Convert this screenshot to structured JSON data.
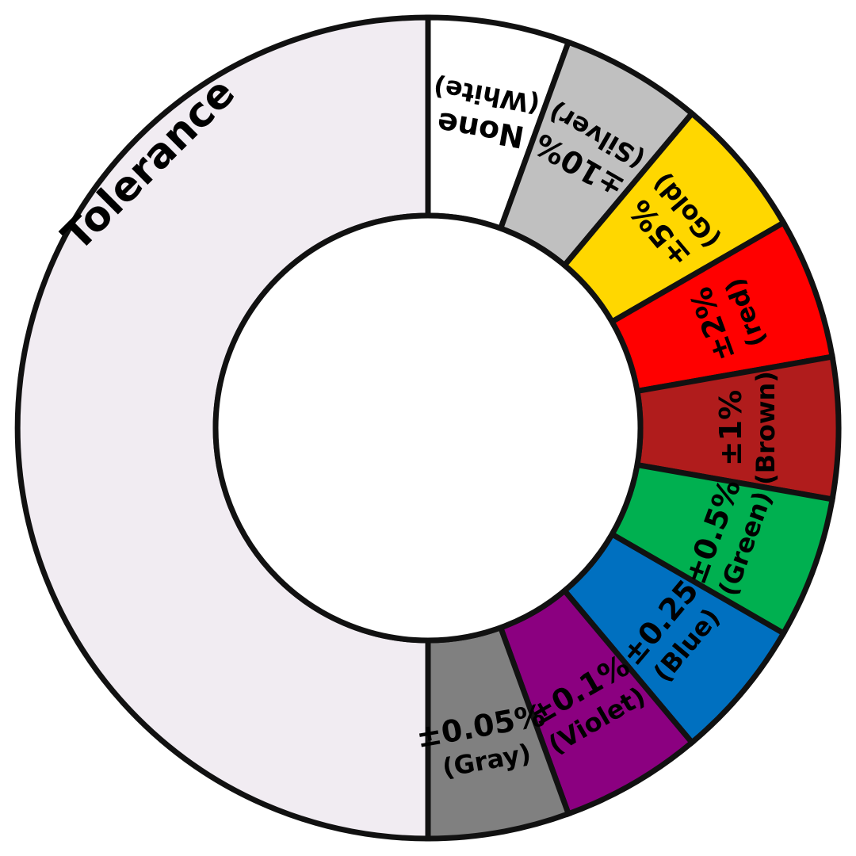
{
  "wheel": {
    "title": "Tolerance",
    "title_bg_color": "#F1ECF2",
    "segments": [
      {
        "line1": "None",
        "line2": "(White)",
        "color": "#FFFFFF"
      },
      {
        "line1": "±10%",
        "line2": "(Silver)",
        "color": "#C0C0C0"
      },
      {
        "line1": "±5%",
        "line2": "(Gold)",
        "color": "#FFD700"
      },
      {
        "line1": "±2%",
        "line2": "(red)",
        "color": "#FF0000"
      },
      {
        "line1": "±1%",
        "line2": "(Brown)",
        "color": "#B01C1C"
      },
      {
        "line1": "±0.5%",
        "line2": "(Green)",
        "color": "#00B050"
      },
      {
        "line1": "±0.25",
        "line2": "(Blue)",
        "color": "#0070C0"
      },
      {
        "line1": "±0.1%",
        "line2": "(Violet)",
        "color": "#8B0080"
      },
      {
        "line1": "±0.05%",
        "line2": "(Gray)",
        "color": "#808080"
      }
    ]
  }
}
